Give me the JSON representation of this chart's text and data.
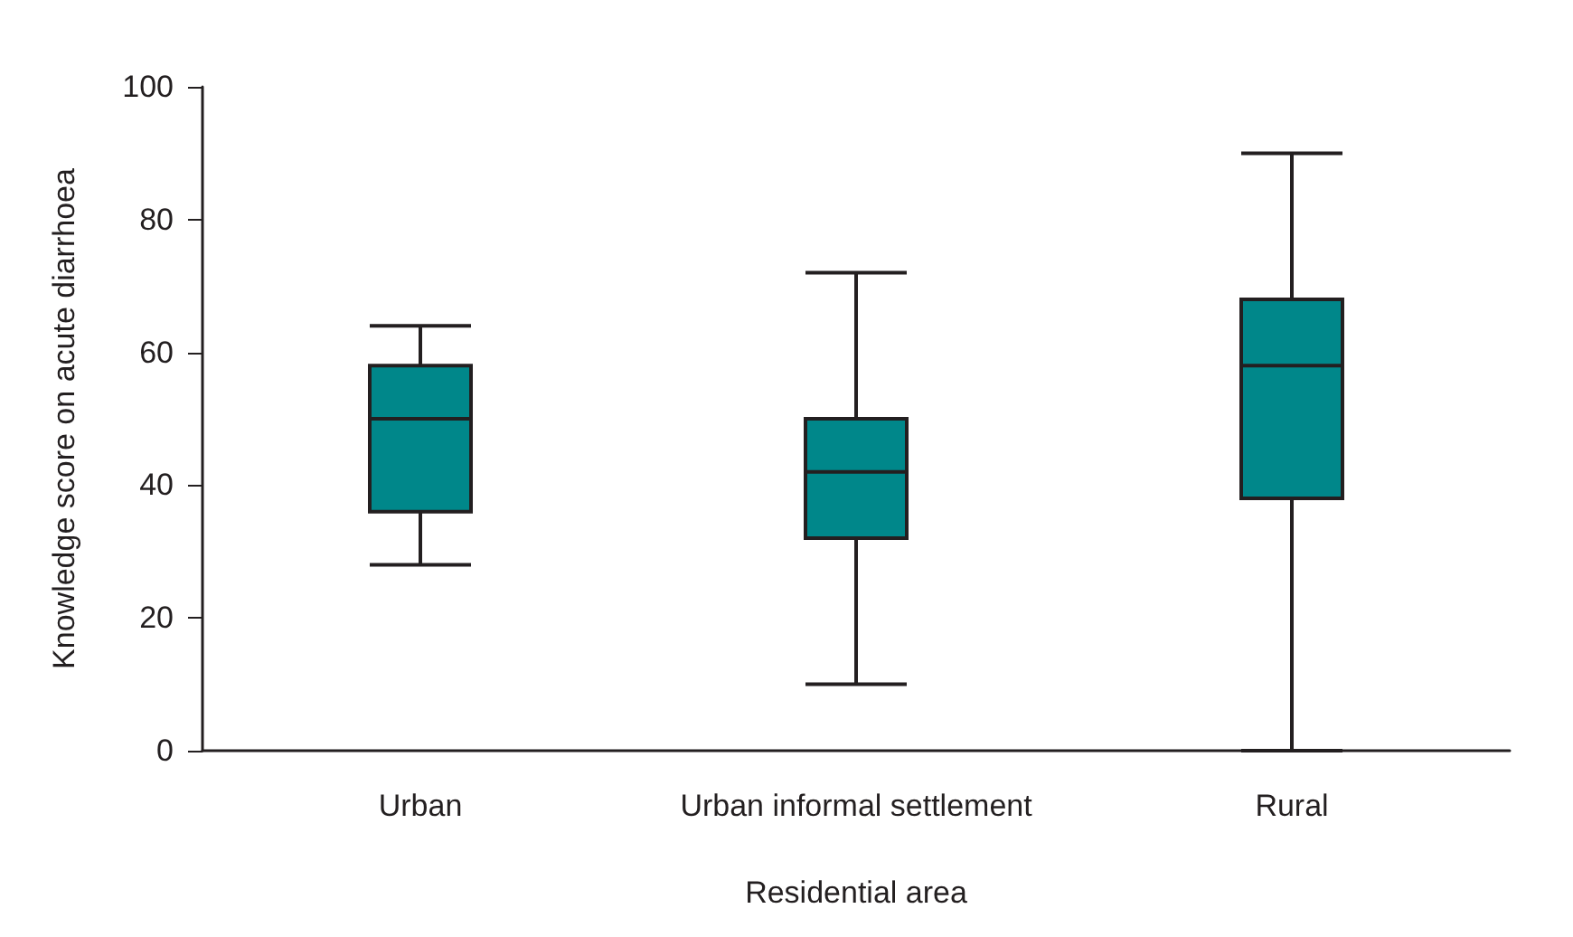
{
  "chart_data": {
    "type": "box",
    "xlabel": "Residential area",
    "ylabel": "Knowledge score on acute diarrhoea",
    "categories": [
      "Urban",
      "Urban informal settlement",
      "Rural"
    ],
    "color": "#00878a",
    "boxes": [
      {
        "low": 28,
        "q1": 36,
        "median": 50,
        "q3": 58,
        "high": 64
      },
      {
        "low": 10,
        "q1": 32,
        "median": 42,
        "q3": 50,
        "high": 72
      },
      {
        "low": 0,
        "q1": 38,
        "median": 58,
        "q3": 68,
        "high": 90
      }
    ],
    "ylim": [
      0,
      100
    ],
    "yticks": [
      0,
      20,
      40,
      60,
      80,
      100
    ]
  }
}
